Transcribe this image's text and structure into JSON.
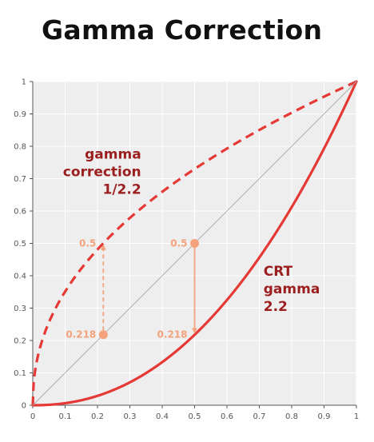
{
  "chart_data": {
    "type": "line",
    "title": "Gamma Correction",
    "xlabel": "",
    "ylabel": "",
    "xlim": [
      0,
      1
    ],
    "ylim": [
      0,
      1
    ],
    "grid": true,
    "x_ticks": [
      "0",
      "0.1",
      "0.2",
      "0.3",
      "0.4",
      "0.5",
      "0.6",
      "0.7",
      "0.8",
      "0.9",
      "1"
    ],
    "y_ticks": [
      "0",
      "0.1",
      "0.2",
      "0.3",
      "0.4",
      "0.5",
      "0.6",
      "0.7",
      "0.8",
      "0.9",
      "1"
    ],
    "series": [
      {
        "gamma": 0.4545,
        "style": "dashed",
        "color": "#e53935",
        "label_lines": [
          "gamma",
          "correction",
          "1/2.2"
        ],
        "points": [
          [
            0,
            0
          ],
          [
            0.01,
            0.123
          ],
          [
            0.02,
            0.169
          ],
          [
            0.05,
            0.256
          ],
          [
            0.1,
            0.351
          ],
          [
            0.15,
            0.422
          ],
          [
            0.2,
            0.481
          ],
          [
            0.218,
            0.5
          ],
          [
            0.3,
            0.578
          ],
          [
            0.4,
            0.659
          ],
          [
            0.5,
            0.73
          ],
          [
            0.6,
            0.793
          ],
          [
            0.7,
            0.85
          ],
          [
            0.8,
            0.904
          ],
          [
            0.9,
            0.953
          ],
          [
            1,
            1
          ]
        ]
      },
      {
        "gamma": 2.2,
        "style": "solid",
        "color": "#e53935",
        "label_lines": [
          "CRT",
          "gamma",
          "2.2"
        ],
        "points": [
          [
            0,
            0
          ],
          [
            0.1,
            0.006
          ],
          [
            0.2,
            0.029
          ],
          [
            0.3,
            0.071
          ],
          [
            0.4,
            0.133
          ],
          [
            0.5,
            0.218
          ],
          [
            0.6,
            0.325
          ],
          [
            0.7,
            0.456
          ],
          [
            0.8,
            0.612
          ],
          [
            0.9,
            0.793
          ],
          [
            1,
            1
          ]
        ]
      },
      {
        "style": "thin",
        "color": "#a8a8a8",
        "points": [
          [
            0,
            0
          ],
          [
            1,
            1
          ]
        ]
      }
    ],
    "annotations": [
      {
        "x": 0.218,
        "y_from": 0.218,
        "y_to": 0.5,
        "style": "dashed",
        "label_low": "0.218",
        "label_high": "0.5"
      },
      {
        "x": 0.5,
        "y_from": 0.5,
        "y_to": 0.218,
        "style": "solid",
        "label_low": "0.218",
        "label_high": "0.5"
      }
    ],
    "colors": {
      "curve": "#e53935",
      "annotation": "#f4a27c",
      "label_dark": "#9c1f1f",
      "background": "#eeeeee",
      "grid": "#ffffff",
      "identity": "#a8a8a8"
    }
  }
}
